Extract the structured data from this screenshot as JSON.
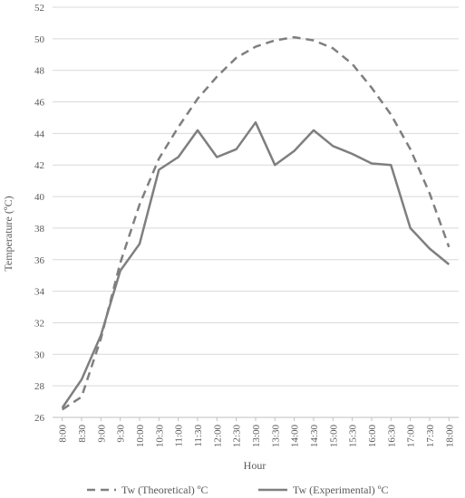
{
  "chart_data": {
    "type": "line",
    "title": "",
    "xlabel": "Hour",
    "ylabel": "Temperature (ºC)",
    "ylim": [
      26,
      52
    ],
    "yticks": [
      26,
      28,
      30,
      32,
      34,
      36,
      38,
      40,
      42,
      44,
      46,
      48,
      50,
      52
    ],
    "grid": "horizontal",
    "legend_position": "bottom",
    "categories": [
      "8:00",
      "8:30",
      "9:00",
      "9:30",
      "10:00",
      "10:30",
      "11:00",
      "11:30",
      "12:00",
      "12:30",
      "13:00",
      "13:30",
      "14:00",
      "14:30",
      "15:00",
      "15:30",
      "16:00",
      "16:30",
      "17:00",
      "17:30",
      "18:00"
    ],
    "series": [
      {
        "name": "Tw (Theoretical) ºC",
        "style": "dashed",
        "color": "#7f7f7f",
        "values": [
          26.5,
          27.3,
          31.0,
          35.8,
          39.5,
          42.4,
          44.4,
          46.2,
          47.6,
          48.8,
          49.5,
          49.9,
          50.1,
          49.9,
          49.4,
          48.4,
          46.9,
          45.2,
          43.0,
          40.2,
          36.8
        ]
      },
      {
        "name": "Tw (Experimental) ºC",
        "style": "solid",
        "color": "#7f7f7f",
        "values": [
          26.6,
          28.4,
          31.2,
          35.3,
          37.0,
          41.7,
          42.5,
          44.2,
          42.5,
          43.0,
          44.7,
          42.0,
          42.9,
          44.2,
          43.2,
          42.7,
          42.1,
          42.0,
          38.0,
          36.7,
          35.7
        ]
      }
    ]
  }
}
